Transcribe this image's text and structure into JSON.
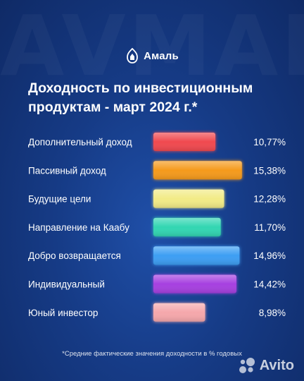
{
  "brand": {
    "name": "Амаль"
  },
  "title_lines": [
    "Доходность по инвестиционным",
    "продуктам - март 2024 г.*"
  ],
  "footnote": "*Средние фактические значения доходности в % годовых",
  "watermark": "Avito",
  "colors": {
    "background": "#163b86",
    "bars": [
      "#f0494f",
      "#f59a1e",
      "#f2eb86",
      "#33d6b2",
      "#3d9ef3",
      "#a641e0",
      "#f5a7ab"
    ]
  },
  "chart_data": {
    "type": "bar",
    "orientation": "horizontal",
    "title": "Доходность по инвестиционным продуктам - март 2024 г.*",
    "categories": [
      "Дополнительный доход",
      "Пассивный доход",
      "Будущие цели",
      "Направление на Каабу",
      "Добро возвращается",
      "Индивидуальный",
      "Юный инвестор"
    ],
    "values": [
      10.77,
      15.38,
      12.28,
      11.7,
      14.96,
      14.42,
      8.98
    ],
    "value_labels": [
      "10,77%",
      "15,38%",
      "12,28%",
      "11,70%",
      "14,96%",
      "14,42%",
      "8,98%"
    ],
    "unit": "%",
    "xlim": [
      0,
      15.9
    ],
    "grid": false,
    "legend": "none"
  }
}
